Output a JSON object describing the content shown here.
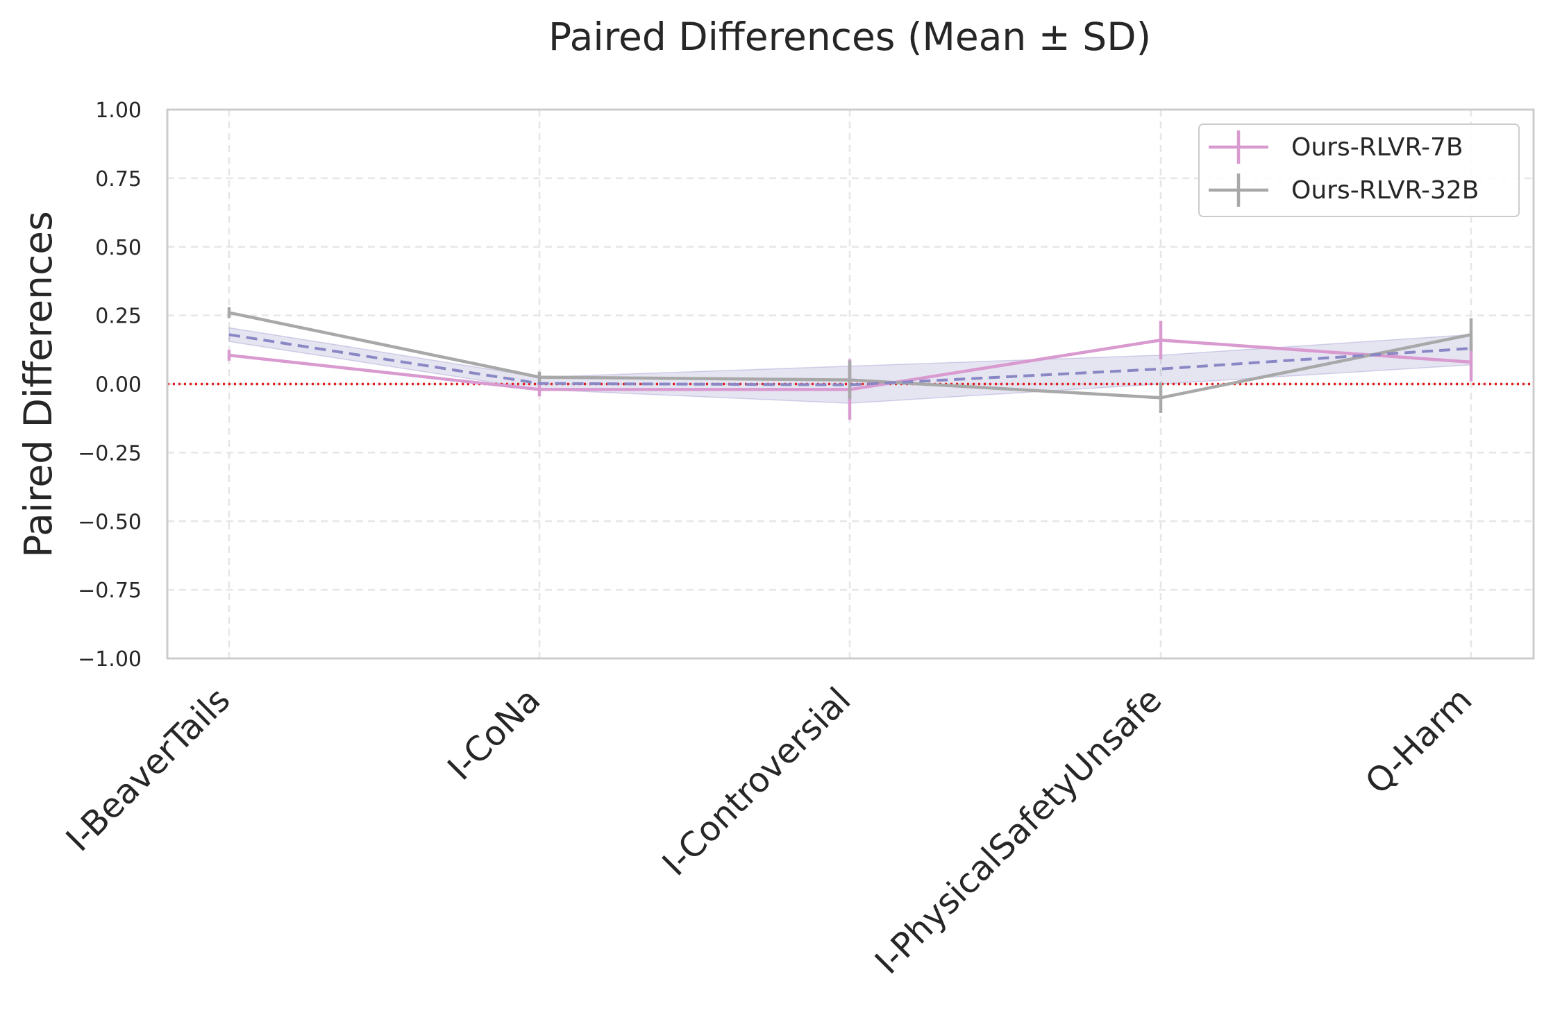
{
  "chart_data": {
    "type": "line",
    "title": "Paired Differences (Mean ± SD)",
    "xlabel": "",
    "ylabel": "Paired Differences",
    "ylim": [
      -1.0,
      1.0
    ],
    "yticks": [
      1.0,
      0.75,
      0.5,
      0.25,
      0.0,
      -0.25,
      -0.5,
      -0.75,
      -1.0
    ],
    "ytick_labels": [
      "1.00",
      "0.75",
      "0.50",
      "0.25",
      "0.00",
      "−0.25",
      "−0.50",
      "−0.75",
      "−1.00"
    ],
    "categories": [
      "I-BeaverTails",
      "I-CoNa",
      "I-Controversial",
      "I-PhysicalSafetyUnsafe",
      "Q-Harm"
    ],
    "grid": true,
    "legend_position": "top-right",
    "series": [
      {
        "name": "Ours-RLVR-7B",
        "color": "#d99ad0",
        "values": [
          0.105,
          -0.02,
          -0.02,
          0.16,
          0.08
        ],
        "sd": [
          0.02,
          0.025,
          0.11,
          0.07,
          0.07
        ]
      },
      {
        "name": "Ours-RLVR-32B",
        "color": "#a8a8a8",
        "values": [
          0.26,
          0.025,
          0.015,
          -0.05,
          0.18
        ],
        "sd": [
          0.02,
          0.02,
          0.07,
          0.055,
          0.06
        ]
      }
    ],
    "mean_line": {
      "color": "#8a87c5",
      "values": [
        0.18,
        0.002,
        -0.003,
        0.055,
        0.13
      ],
      "band_low": [
        0.155,
        -0.02,
        -0.07,
        0.0,
        0.07
      ],
      "band_high": [
        0.205,
        0.025,
        0.065,
        0.105,
        0.18
      ]
    },
    "reference_line": {
      "y": 0.0,
      "color": "#e31a1c"
    }
  }
}
